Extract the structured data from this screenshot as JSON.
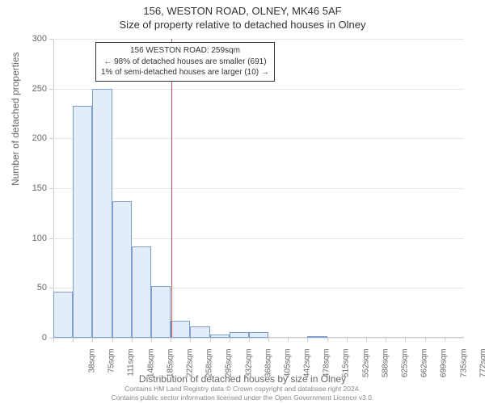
{
  "title_main": "156, WESTON ROAD, OLNEY, MK46 5AF",
  "title_sub": "Size of property relative to detached houses in Olney",
  "ylabel": "Number of detached properties",
  "xlabel": "Distribution of detached houses by size in Olney",
  "chart": {
    "type": "histogram",
    "background_color": "#ffffff",
    "grid_color": "#e6e6e6",
    "axis_color": "#cccccc",
    "tick_font_color": "#666666",
    "tick_fontsize": 10,
    "label_fontsize": 12,
    "title_fontsize": 13,
    "ylim": [
      0,
      300
    ],
    "yticks": [
      0,
      50,
      100,
      150,
      200,
      250,
      300
    ],
    "xtick_labels": [
      "38sqm",
      "75sqm",
      "111sqm",
      "148sqm",
      "185sqm",
      "222sqm",
      "258sqm",
      "295sqm",
      "332sqm",
      "368sqm",
      "405sqm",
      "442sqm",
      "478sqm",
      "515sqm",
      "552sqm",
      "588sqm",
      "625sqm",
      "662sqm",
      "699sqm",
      "735sqm",
      "772sqm"
    ],
    "values": [
      46,
      233,
      250,
      137,
      92,
      52,
      17,
      11,
      3,
      6,
      6,
      0,
      0,
      2,
      0,
      0,
      0,
      0,
      0,
      0,
      0
    ],
    "bar_fill": "#e3ecf9",
    "bar_border": "#7e9fd1",
    "bar_width_ratio": 1.0,
    "highlight": {
      "value_sqm": 259,
      "line_color": "#c05a5a"
    }
  },
  "annotation": {
    "line1": "156 WESTON ROAD: 259sqm",
    "line2": "← 98% of detached houses are smaller (691)",
    "line3": "1% of semi-detached houses are larger (10) →",
    "border_color": "#333333",
    "bg_color": "#ffffff",
    "fontsize": 10
  },
  "footer": {
    "line1": "Contains HM Land Registry data © Crown copyright and database right 2024.",
    "line2": "Contains public sector information licensed under the Open Government Licence v3.0.",
    "color": "#888888",
    "fontsize": 8.5
  }
}
